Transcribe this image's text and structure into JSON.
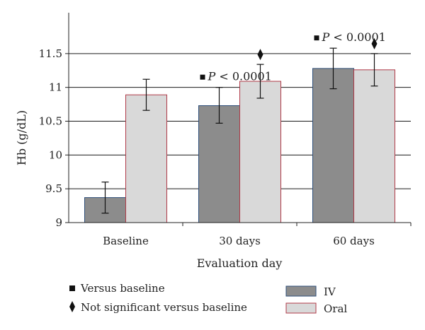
{
  "chart_data": {
    "type": "bar",
    "title": "",
    "xlabel": "Evaluation day",
    "ylabel": "Hb (g/dL)",
    "ylim": [
      9,
      12
    ],
    "yticks": [
      9,
      9.5,
      10,
      10.5,
      11,
      11.5
    ],
    "ytick_labels": [
      "9",
      "9.5",
      "10",
      "10.5",
      "11",
      "11.5"
    ],
    "grid": true,
    "categories": [
      "Baseline",
      "30 days",
      "60 days"
    ],
    "series": [
      {
        "name": "IV",
        "color": "#8c8c8c",
        "edge_color": "#2f4f7a",
        "values": [
          9.37,
          10.73,
          11.28
        ],
        "error": [
          [
            9.14,
            9.6
          ],
          [
            10.47,
            11.0
          ],
          [
            10.98,
            11.58
          ]
        ]
      },
      {
        "name": "Oral",
        "color": "#d9d9d9",
        "edge_color": "#b03a48",
        "values": [
          10.89,
          11.09,
          11.26
        ],
        "error": [
          [
            10.66,
            11.12
          ],
          [
            10.84,
            11.34
          ],
          [
            11.02,
            11.5
          ]
        ]
      }
    ],
    "annotations": [
      {
        "category": "30 days",
        "series": "IV",
        "marker": "square",
        "text": "P < 0.0001",
        "text_p": "P",
        "text_rest": " < 0.0001"
      },
      {
        "category": "30 days",
        "series": "Oral",
        "marker": "diamond",
        "text": ""
      },
      {
        "category": "60 days",
        "series": "IV",
        "marker": "square",
        "text": "P < 0.0001",
        "text_p": "P",
        "text_rest": " < 0.0001"
      },
      {
        "category": "60 days",
        "series": "Oral",
        "marker": "diamond",
        "text": ""
      }
    ],
    "legend": {
      "position": "bottom",
      "marker_items": [
        {
          "marker": "square",
          "label": "Versus baseline"
        },
        {
          "marker": "diamond",
          "label": "Not significant versus baseline"
        }
      ],
      "series_items": [
        "IV",
        "Oral"
      ]
    }
  }
}
